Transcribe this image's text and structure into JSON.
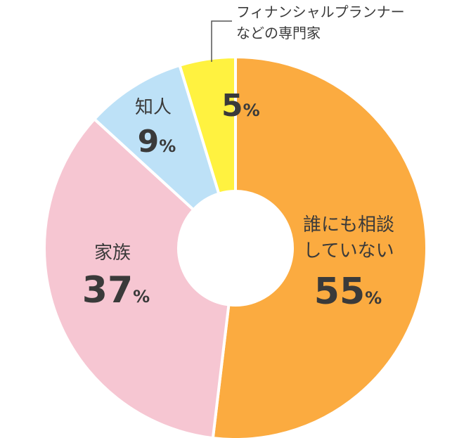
{
  "chart_data": {
    "type": "pie",
    "donut": true,
    "start_angle_deg": 0,
    "direction": "clockwise",
    "slices": [
      {
        "label_lines": [
          "誰にも相談",
          "していない"
        ],
        "value": 55,
        "value_text": "55",
        "unit": "%",
        "color": "#fbab40",
        "callout": false
      },
      {
        "label_lines": [
          "家族"
        ],
        "value": 37,
        "value_text": "37",
        "unit": "%",
        "color": "#f6c6d2",
        "callout": false
      },
      {
        "label_lines": [
          "知人"
        ],
        "value": 9,
        "value_text": "9",
        "unit": "%",
        "color": "#bde1f7",
        "callout": false
      },
      {
        "label_lines": [
          "フィナンシャルプランナー",
          "などの専門家"
        ],
        "value": 5,
        "value_text": "5",
        "unit": "%",
        "color": "#fff240",
        "callout": true
      }
    ]
  }
}
